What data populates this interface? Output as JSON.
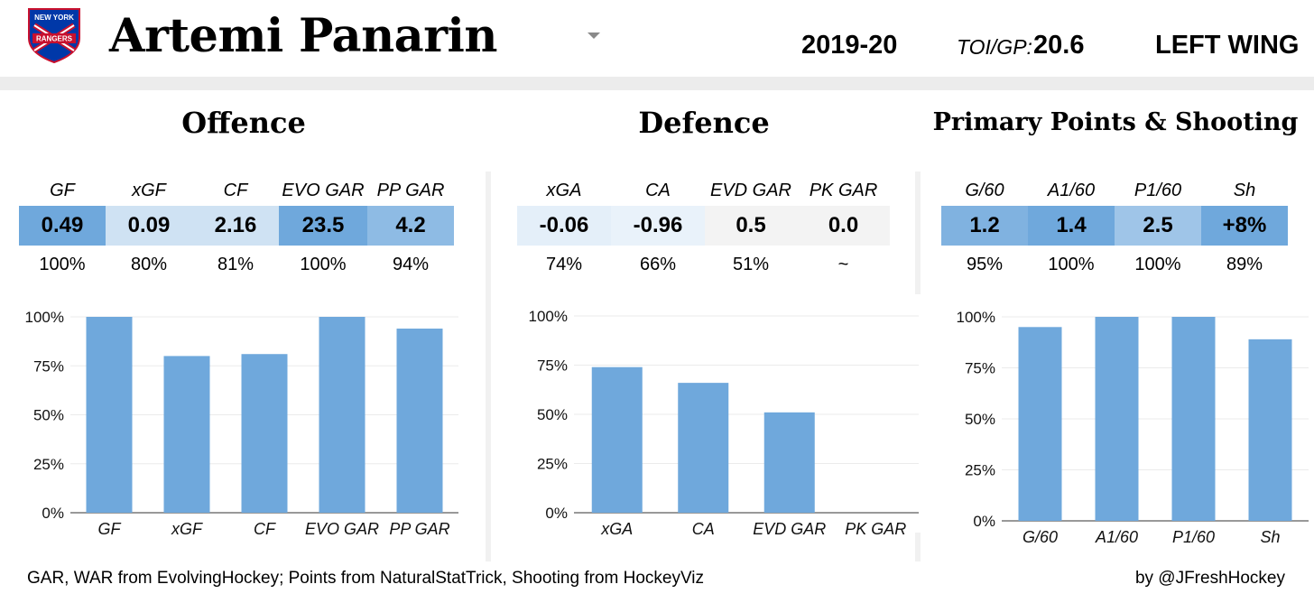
{
  "header": {
    "logo_text": [
      "NEW YORK",
      "RANGERS"
    ],
    "player_name": "Artemi Panarin",
    "season": "2019-20",
    "toi_label": "TOI/GP:",
    "toi_value": "20.6",
    "position": "LEFT WING"
  },
  "colors": {
    "bar": "#6fa8dc",
    "cell_strong": "#6fa8dc",
    "cell_mid": "#9fc5e8",
    "cell_light": "#cfe2f3",
    "cell_pale": "#e4eff9",
    "cell_neutral": "#f3f3f3",
    "divider": "#f1f1f1",
    "grid": "#ebebeb"
  },
  "sections": [
    {
      "title": "Offence",
      "stats": [
        {
          "label": "GF",
          "value": "0.49",
          "pct": "100%"
        },
        {
          "label": "xGF",
          "value": "0.09",
          "pct": "80%"
        },
        {
          "label": "CF",
          "value": "2.16",
          "pct": "81%"
        },
        {
          "label": "EVO GAR",
          "value": "23.5",
          "pct": "100%"
        },
        {
          "label": "PP GAR",
          "value": "4.2",
          "pct": "94%"
        }
      ]
    },
    {
      "title": "Defence",
      "stats": [
        {
          "label": "xGA",
          "value": "-0.06",
          "pct": "74%"
        },
        {
          "label": "CA",
          "value": "-0.96",
          "pct": "66%"
        },
        {
          "label": "EVD GAR",
          "value": "0.5",
          "pct": "51%"
        },
        {
          "label": "PK GAR",
          "value": "0.0",
          "pct": "~"
        }
      ]
    },
    {
      "title": "Primary Points & Shooting",
      "stats": [
        {
          "label": "G/60",
          "value": "1.2",
          "pct": "95%"
        },
        {
          "label": "A1/60",
          "value": "1.4",
          "pct": "100%"
        },
        {
          "label": "P1/60",
          "value": "2.5",
          "pct": "100%"
        },
        {
          "label": "Sh",
          "value": "+8%",
          "pct": "89%"
        }
      ]
    }
  ],
  "chart_data": [
    {
      "type": "bar",
      "categories": [
        "GF",
        "xGF",
        "CF",
        "EVO GAR",
        "PP GAR"
      ],
      "values": [
        100,
        80,
        81,
        100,
        94
      ],
      "ylim": [
        0,
        100
      ],
      "yticks": [
        "0%",
        "25%",
        "50%",
        "75%",
        "100%"
      ],
      "grid": true
    },
    {
      "type": "bar",
      "categories": [
        "xGA",
        "CA",
        "EVD GAR",
        "PK GAR"
      ],
      "values": [
        74,
        66,
        51,
        0
      ],
      "ylim": [
        0,
        100
      ],
      "yticks": [
        "0%",
        "25%",
        "50%",
        "75%",
        "100%"
      ],
      "grid": true
    },
    {
      "type": "bar",
      "categories": [
        "G/60",
        "A1/60",
        "P1/60",
        "Sh"
      ],
      "values": [
        95,
        100,
        100,
        89
      ],
      "ylim": [
        0,
        100
      ],
      "yticks": [
        "0%",
        "25%",
        "50%",
        "75%",
        "100%"
      ],
      "grid": true
    }
  ],
  "footer": {
    "source": "GAR, WAR from EvolvingHockey; Points from NaturalStatTrick, Shooting from HockeyViz",
    "credit": "by @JFreshHockey"
  }
}
